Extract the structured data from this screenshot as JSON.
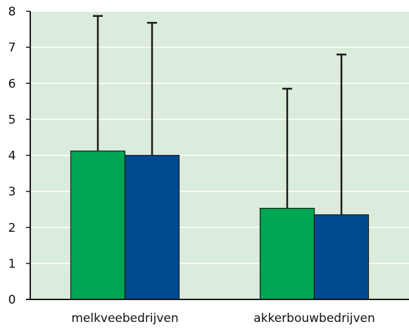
{
  "chart_data": {
    "type": "bar",
    "title": "",
    "xlabel": "",
    "ylabel": "",
    "categories": [
      "melkveebedrijven",
      "akkerbouwbedrijven"
    ],
    "series": [
      {
        "values": [
          4.12,
          2.53
        ],
        "error_upper": [
          7.87,
          5.85
        ],
        "color": "#00a651"
      },
      {
        "values": [
          4.0,
          2.35
        ],
        "error_upper": [
          7.68,
          6.8
        ],
        "color": "#004990"
      }
    ],
    "ylim": [
      0,
      8
    ],
    "yticks": [
      "0",
      "1",
      "2",
      "3",
      "4",
      "5",
      "6",
      "7",
      "8"
    ],
    "grid": true,
    "legend": "none",
    "colors": {
      "plot_background": "#dcecdc",
      "grid": "#ffffff",
      "axis": "#1a1a1a",
      "error_bar": "#1a1a1a"
    }
  }
}
